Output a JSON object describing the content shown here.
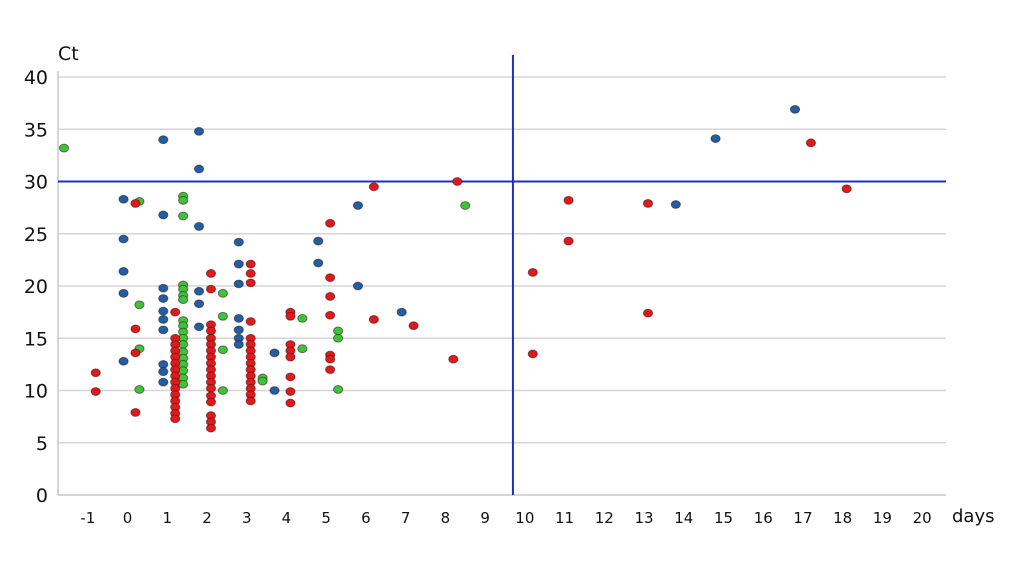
{
  "chart_data": {
    "type": "scatter",
    "ylabel": "Ct",
    "xlabel": "days",
    "xlim": [
      -1.75,
      20.6
    ],
    "ylim": [
      0,
      40
    ],
    "x_ticks": [
      -1,
      0,
      1,
      2,
      3,
      4,
      5,
      6,
      7,
      8,
      9,
      10,
      11,
      12,
      13,
      14,
      15,
      16,
      17,
      18,
      19,
      20
    ],
    "y_ticks": [
      0,
      5,
      10,
      15,
      20,
      25,
      30,
      35,
      40
    ],
    "grid": "horizontal",
    "legend": "none",
    "reference_lines": {
      "horizontal_y": 30,
      "vertical_x": 9.7
    },
    "colors": {
      "blue": "#1f5fa6",
      "green": "#3cc43a",
      "red": "#e0191b",
      "reference_line": "#1c2fbf",
      "grid": "#d6d6d6"
    },
    "series": [
      {
        "color": "blue",
        "points": [
          [
            -0.1,
            28.3
          ],
          [
            -0.1,
            24.5
          ],
          [
            -0.1,
            21.4
          ],
          [
            -0.1,
            19.3
          ],
          [
            -0.1,
            12.8
          ],
          [
            0.9,
            34.0
          ],
          [
            0.9,
            26.8
          ],
          [
            0.9,
            19.8
          ],
          [
            0.9,
            18.8
          ],
          [
            0.9,
            17.6
          ],
          [
            0.9,
            16.8
          ],
          [
            0.9,
            15.8
          ],
          [
            0.9,
            12.5
          ],
          [
            0.9,
            11.8
          ],
          [
            0.9,
            10.8
          ],
          [
            1.8,
            34.8
          ],
          [
            1.8,
            31.2
          ],
          [
            1.8,
            25.7
          ],
          [
            1.8,
            19.5
          ],
          [
            1.8,
            18.3
          ],
          [
            1.8,
            16.1
          ],
          [
            2.8,
            24.2
          ],
          [
            2.8,
            22.1
          ],
          [
            2.8,
            20.2
          ],
          [
            2.8,
            16.9
          ],
          [
            2.8,
            15.8
          ],
          [
            2.8,
            15.0
          ],
          [
            2.8,
            14.4
          ],
          [
            3.7,
            13.6
          ],
          [
            3.7,
            10.0
          ],
          [
            4.8,
            24.3
          ],
          [
            4.8,
            22.2
          ],
          [
            5.8,
            27.7
          ],
          [
            5.8,
            20.0
          ],
          [
            6.9,
            17.5
          ],
          [
            13.8,
            27.8
          ],
          [
            14.8,
            34.1
          ],
          [
            16.8,
            36.9
          ]
        ]
      },
      {
        "color": "green",
        "points": [
          [
            -1.6,
            33.2
          ],
          [
            0.3,
            28.1
          ],
          [
            0.3,
            18.2
          ],
          [
            0.3,
            14.0
          ],
          [
            0.3,
            10.1
          ],
          [
            1.4,
            28.6
          ],
          [
            1.4,
            28.2
          ],
          [
            1.4,
            26.7
          ],
          [
            1.4,
            20.1
          ],
          [
            1.4,
            19.7
          ],
          [
            1.4,
            19.1
          ],
          [
            1.4,
            18.7
          ],
          [
            1.4,
            16.7
          ],
          [
            1.4,
            16.2
          ],
          [
            1.4,
            15.6
          ],
          [
            1.4,
            15.0
          ],
          [
            1.4,
            14.4
          ],
          [
            1.4,
            13.7
          ],
          [
            1.4,
            13.1
          ],
          [
            1.4,
            12.5
          ],
          [
            1.4,
            11.9
          ],
          [
            1.4,
            11.2
          ],
          [
            1.4,
            10.6
          ],
          [
            2.4,
            19.3
          ],
          [
            2.4,
            17.1
          ],
          [
            2.4,
            13.9
          ],
          [
            2.4,
            10.0
          ],
          [
            3.4,
            11.2
          ],
          [
            3.4,
            10.9
          ],
          [
            4.4,
            16.9
          ],
          [
            4.4,
            14.0
          ],
          [
            5.3,
            15.7
          ],
          [
            5.3,
            15.0
          ],
          [
            5.3,
            10.1
          ],
          [
            8.5,
            27.7
          ]
        ]
      },
      {
        "color": "red",
        "points": [
          [
            -0.8,
            11.7
          ],
          [
            -0.8,
            9.9
          ],
          [
            0.2,
            27.9
          ],
          [
            0.2,
            15.9
          ],
          [
            0.2,
            13.6
          ],
          [
            0.2,
            7.9
          ],
          [
            1.2,
            17.5
          ],
          [
            1.2,
            15.0
          ],
          [
            1.2,
            14.4
          ],
          [
            1.2,
            13.8
          ],
          [
            1.2,
            13.2
          ],
          [
            1.2,
            12.6
          ],
          [
            1.2,
            12.0
          ],
          [
            1.2,
            11.4
          ],
          [
            1.2,
            10.8
          ],
          [
            1.2,
            10.2
          ],
          [
            1.2,
            9.6
          ],
          [
            1.2,
            9.0
          ],
          [
            1.2,
            8.4
          ],
          [
            1.2,
            7.8
          ],
          [
            1.2,
            7.3
          ],
          [
            2.1,
            21.2
          ],
          [
            2.1,
            19.7
          ],
          [
            2.1,
            16.3
          ],
          [
            2.1,
            15.7
          ],
          [
            2.1,
            15.0
          ],
          [
            2.1,
            14.4
          ],
          [
            2.1,
            13.8
          ],
          [
            2.1,
            13.2
          ],
          [
            2.1,
            12.6
          ],
          [
            2.1,
            12.0
          ],
          [
            2.1,
            11.4
          ],
          [
            2.1,
            10.8
          ],
          [
            2.1,
            10.2
          ],
          [
            2.1,
            9.5
          ],
          [
            2.1,
            8.9
          ],
          [
            2.1,
            7.6
          ],
          [
            2.1,
            7.0
          ],
          [
            2.1,
            6.4
          ],
          [
            3.1,
            22.1
          ],
          [
            3.1,
            21.2
          ],
          [
            3.1,
            20.3
          ],
          [
            3.1,
            16.6
          ],
          [
            3.1,
            15.0
          ],
          [
            3.1,
            14.4
          ],
          [
            3.1,
            13.8
          ],
          [
            3.1,
            13.2
          ],
          [
            3.1,
            12.6
          ],
          [
            3.1,
            12.0
          ],
          [
            3.1,
            11.4
          ],
          [
            3.1,
            10.8
          ],
          [
            3.1,
            10.2
          ],
          [
            3.1,
            9.6
          ],
          [
            3.1,
            9.0
          ],
          [
            4.1,
            17.5
          ],
          [
            4.1,
            17.1
          ],
          [
            4.1,
            14.4
          ],
          [
            4.1,
            13.8
          ],
          [
            4.1,
            13.2
          ],
          [
            4.1,
            11.3
          ],
          [
            4.1,
            9.9
          ],
          [
            4.1,
            8.8
          ],
          [
            5.1,
            26.0
          ],
          [
            5.1,
            20.8
          ],
          [
            5.1,
            19.0
          ],
          [
            5.1,
            17.2
          ],
          [
            5.1,
            13.4
          ],
          [
            5.1,
            13.0
          ],
          [
            5.1,
            12.0
          ],
          [
            6.2,
            29.5
          ],
          [
            6.2,
            16.8
          ],
          [
            7.2,
            16.2
          ],
          [
            8.3,
            30.0
          ],
          [
            8.2,
            13.0
          ],
          [
            10.2,
            21.3
          ],
          [
            10.2,
            13.5
          ],
          [
            11.1,
            28.2
          ],
          [
            11.1,
            24.3
          ],
          [
            13.1,
            27.9
          ],
          [
            13.1,
            17.4
          ],
          [
            17.2,
            33.7
          ],
          [
            18.1,
            29.3
          ]
        ]
      }
    ]
  }
}
